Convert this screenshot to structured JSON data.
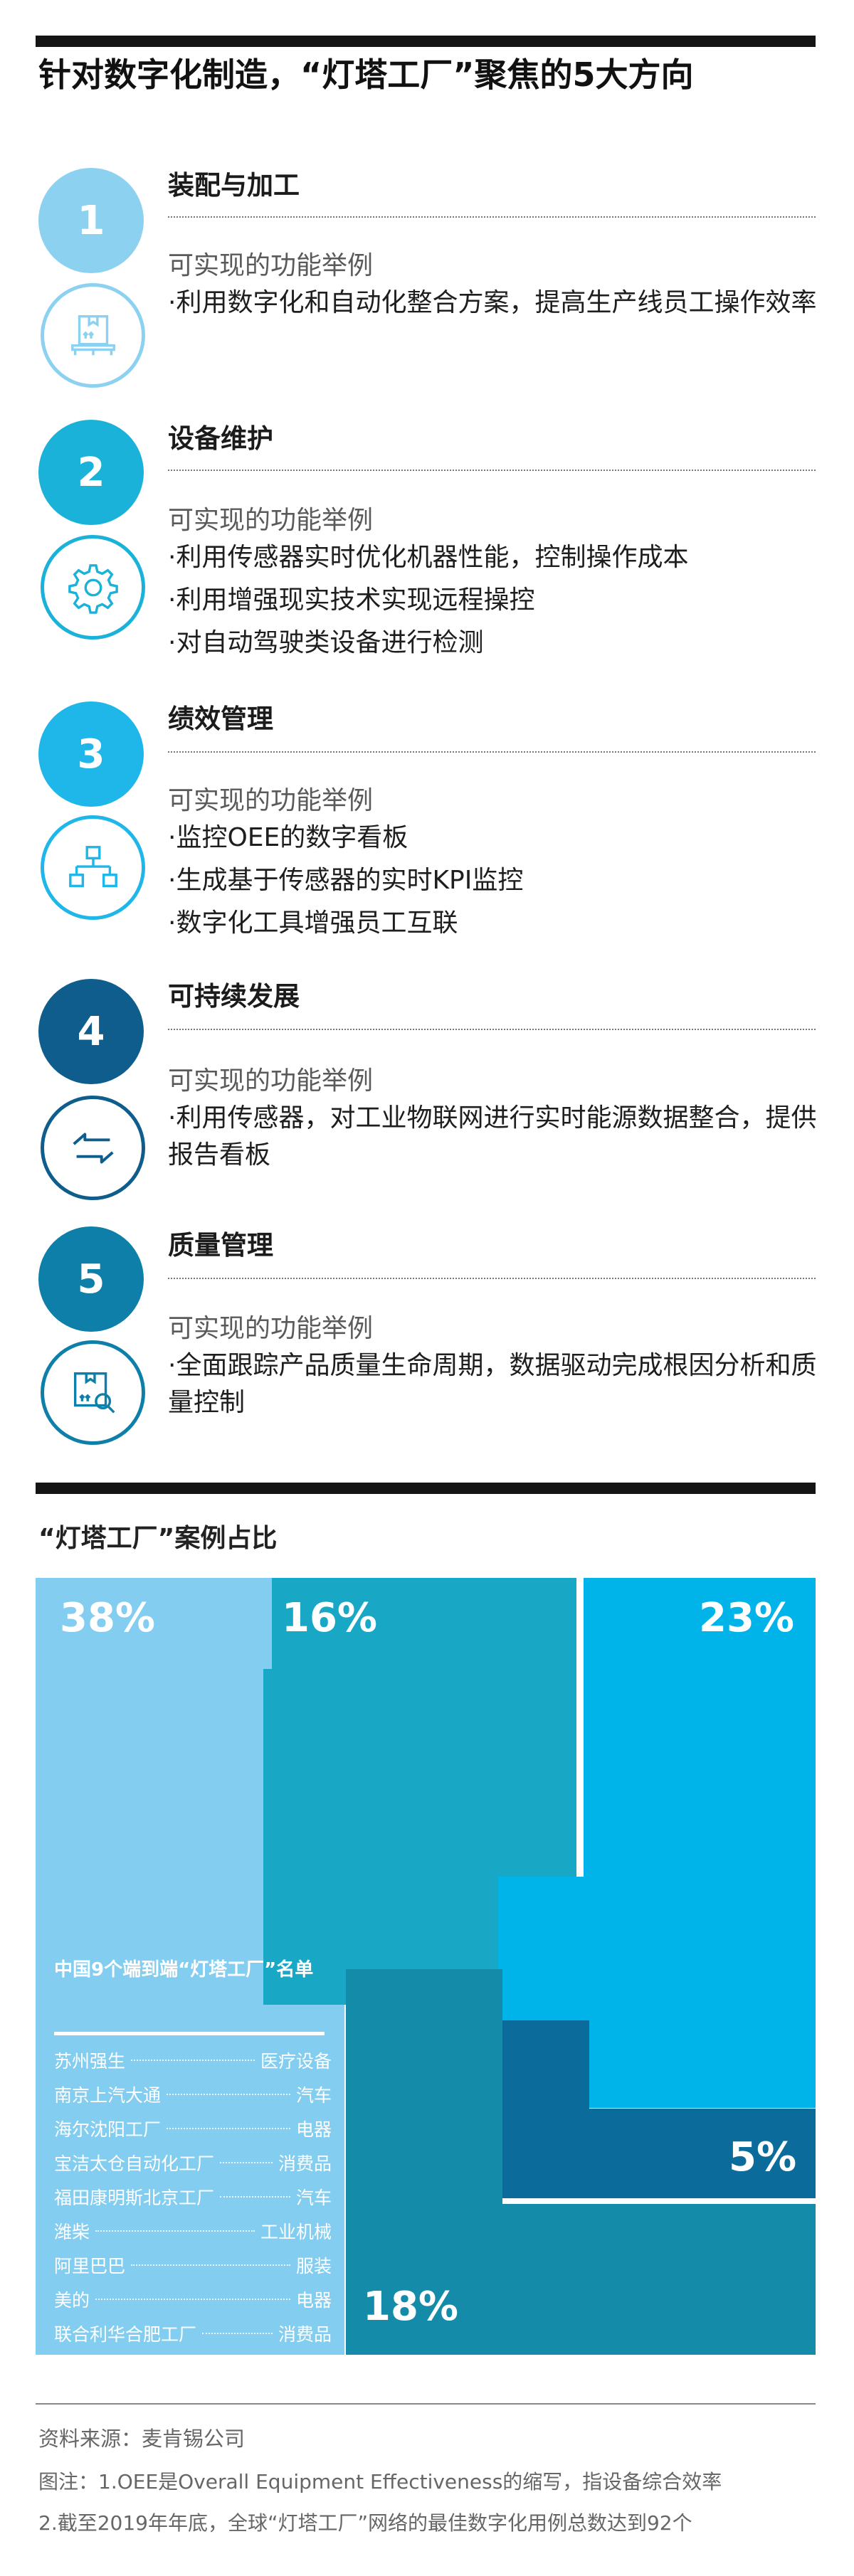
{
  "title": "针对数字化制造，“灯塔工厂”聚焦的5大方向",
  "sections": [
    {
      "num": "1",
      "name": "装配与加工",
      "sub": "可实现的功能举例",
      "color": "#8dd1f1",
      "icon": "package-icon",
      "bullets": [
        "·利用数字化和自动化整合方案，提高生产线员工操作效率"
      ]
    },
    {
      "num": "2",
      "name": "设备维护",
      "sub": "可实现的功能举例",
      "color": "#1ab2d8",
      "icon": "gear-icon",
      "bullets": [
        "·利用传感器实时优化机器性能，控制操作成本",
        "·利用增强现实技术实现远程操控",
        "·对自动驾驶类设备进行检测"
      ]
    },
    {
      "num": "3",
      "name": "绩效管理",
      "sub": "可实现的功能举例",
      "color": "#1fb6e9",
      "icon": "hierarchy-icon",
      "bullets": [
        "·监控OEE的数字看板",
        "·生成基于传感器的实时KPI监控",
        "·数字化工具增强员工互联"
      ]
    },
    {
      "num": "4",
      "name": "可持续发展",
      "sub": "可实现的功能举例",
      "color": "#0e5d8c",
      "icon": "exchange-arrows-icon",
      "bullets": [
        "·利用传感器，对工业物联网进行实时能源数据整合，提供报告看板"
      ]
    },
    {
      "num": "5",
      "name": "质量管理",
      "sub": "可实现的功能举例",
      "color": "#0e7fa8",
      "icon": "package-inspect-icon",
      "bullets": [
        "·全面跟踪产品质量生命周期，数据驱动完成根因分析和质量控制"
      ]
    }
  ],
  "chart_title": "“灯塔工厂”案例占比",
  "chart_data": {
    "type": "treemap",
    "title": "“灯塔工厂”案例占比",
    "values": [
      {
        "label": "38%",
        "value": 38,
        "color": "#82cdf0"
      },
      {
        "label": "16%",
        "value": 16,
        "color": "#19a7c6"
      },
      {
        "label": "23%",
        "value": 23,
        "color": "#00b4ea"
      },
      {
        "label": "5%",
        "value": 5,
        "color": "#0b6c9c"
      },
      {
        "label": "18%",
        "value": 18,
        "color": "#138ba9"
      }
    ]
  },
  "list": {
    "title": "中国9个端到端“灯塔工厂”名单",
    "items": [
      {
        "company": "苏州强生",
        "industry": "医疗设备"
      },
      {
        "company": "南京上汽大通",
        "industry": "汽车"
      },
      {
        "company": "海尔沈阳工厂",
        "industry": "电器"
      },
      {
        "company": "宝洁太仓自动化工厂",
        "industry": "消费品"
      },
      {
        "company": "福田康明斯北京工厂",
        "industry": "汽车"
      },
      {
        "company": "潍柴",
        "industry": "工业机械"
      },
      {
        "company": "阿里巴巴",
        "industry": "服装"
      },
      {
        "company": "美的",
        "industry": "电器"
      },
      {
        "company": "联合利华合肥工厂",
        "industry": "消费品"
      }
    ]
  },
  "footer": {
    "source": "资料来源：麦肯锡公司",
    "note1": "图注：1.OEE是Overall Equipment Effectiveness的缩写，指设备综合效率",
    "note2": "2.截至2019年年底，全球“灯塔工厂”网络的最佳数字化用例总数达到92个"
  }
}
